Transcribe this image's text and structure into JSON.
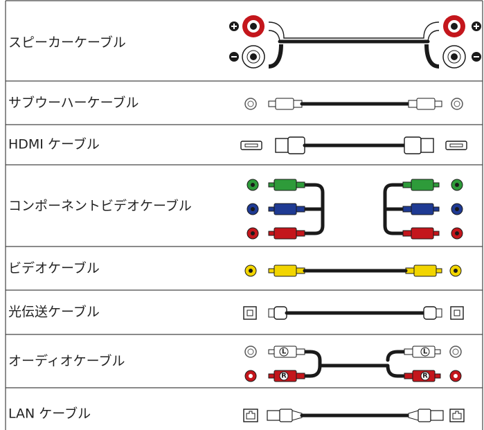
{
  "rows": [
    {
      "label": "スピーカーケーブル"
    },
    {
      "label": "サブウーハーケーブル"
    },
    {
      "label": "HDMI ケーブル"
    },
    {
      "label": "コンポーネントビデオケーブル"
    },
    {
      "label": "ビデオケーブル"
    },
    {
      "label": "光伝送ケーブル"
    },
    {
      "label": "オーディオケーブル",
      "plug_labels": [
        "L",
        "R"
      ]
    },
    {
      "label": "LAN ケーブル"
    }
  ]
}
